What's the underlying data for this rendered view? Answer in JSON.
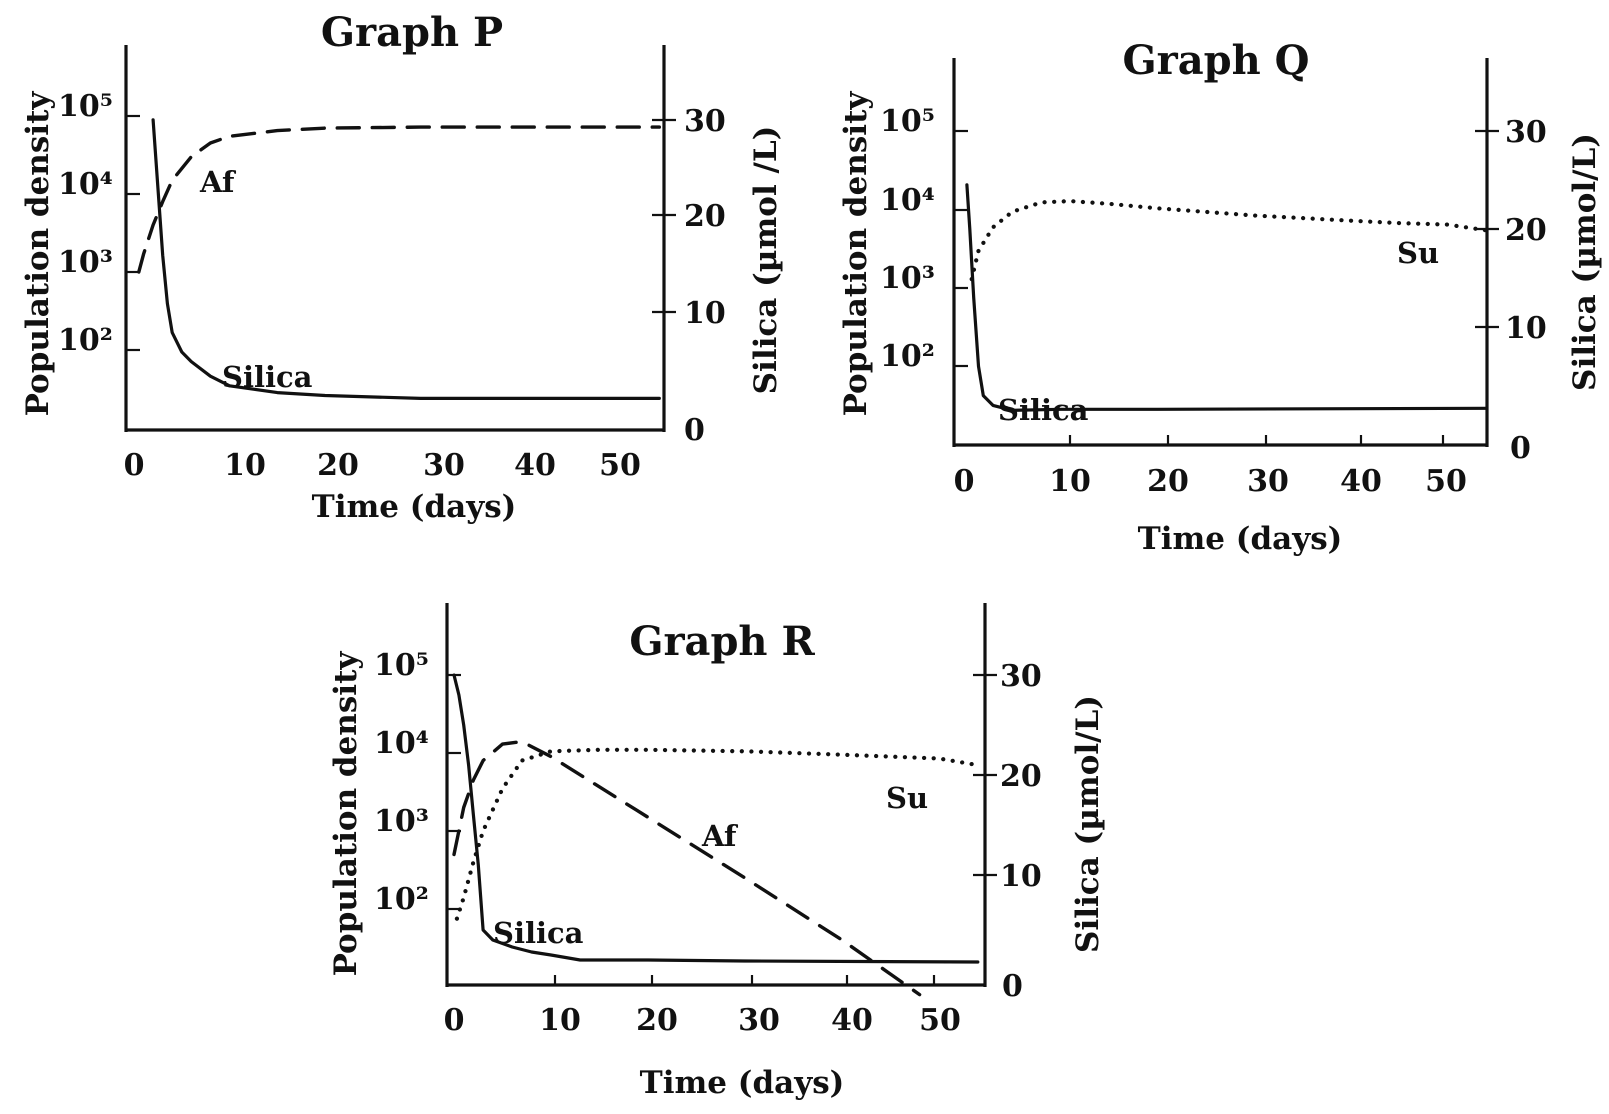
{
  "chart_data": [
    {
      "type": "line",
      "title": "Graph P",
      "xlabel": "Time (days)",
      "ylabel_left": "Population density",
      "ylabel_right": "Silica (µmol /L)",
      "x_ticks": [
        "0",
        "10",
        "20",
        "30",
        "40",
        "50"
      ],
      "y_left_ticks": [
        "10²",
        "10³",
        "10⁴",
        "10⁵"
      ],
      "y_left_scale": "log",
      "y_right_ticks": [
        "0",
        "10",
        "20",
        "30"
      ],
      "y_right_range": [
        0,
        30
      ],
      "xlim": [
        0,
        55
      ],
      "series": [
        {
          "name": "Silica",
          "axis": "right",
          "style": "solid",
          "x": [
            2,
            2.5,
            3,
            3.5,
            4,
            5,
            6,
            8,
            10,
            15,
            20,
            30,
            40,
            55
          ],
          "y": [
            30,
            23,
            16,
            11,
            8,
            6,
            5,
            3.5,
            2.5,
            1.8,
            1.5,
            1.2,
            1.2,
            1.2
          ]
        },
        {
          "name": "Af",
          "axis": "left",
          "style": "dashed",
          "x": [
            0.5,
            1,
            2,
            3,
            4,
            6,
            8,
            10,
            15,
            20,
            30,
            55
          ],
          "y": [
            1000,
            1700,
            4000,
            8000,
            15000,
            30000,
            45000,
            55000,
            65000,
            70000,
            72000,
            72000
          ]
        }
      ],
      "annotations": [
        "Silica",
        "Af"
      ]
    },
    {
      "type": "line",
      "title": "Graph Q",
      "xlabel": "Time (days)",
      "ylabel_left": "Population density",
      "ylabel_right": "Silica (µmol/L)",
      "x_ticks": [
        "0",
        "10",
        "20",
        "30",
        "40",
        "50"
      ],
      "y_left_ticks": [
        "10²",
        "10³",
        "10⁴",
        "10⁵"
      ],
      "y_left_scale": "log",
      "y_right_ticks": [
        "0",
        "10",
        "20",
        "30"
      ],
      "y_right_range": [
        0,
        30
      ],
      "xlim": [
        0,
        55
      ],
      "series": [
        {
          "name": "Silica",
          "axis": "right",
          "style": "solid",
          "x": [
            0.3,
            0.6,
            1,
            1.5,
            2,
            3,
            5,
            10,
            20,
            54
          ],
          "y": [
            24.5,
            20,
            13,
            6,
            3,
            2,
            1.5,
            1.6,
            1.6,
            1.7
          ]
        },
        {
          "name": "Su",
          "axis": "left",
          "style": "dotted",
          "x": [
            0.8,
            1.5,
            3,
            5,
            8,
            11,
            15,
            20,
            30,
            40,
            45,
            50,
            54
          ],
          "y": [
            1300,
            3000,
            6000,
            9500,
            12500,
            13000,
            12000,
            10500,
            8500,
            7300,
            6800,
            6500,
            5500
          ]
        }
      ],
      "annotations": [
        "Silica",
        "Su"
      ]
    },
    {
      "type": "line",
      "title": "Graph R",
      "xlabel": "Time (days)",
      "ylabel_left": "Population density",
      "ylabel_right": "Silica (µmol/L)",
      "x_ticks": [
        "0",
        "10",
        "20",
        "30",
        "40",
        "50"
      ],
      "y_left_ticks": [
        "10²",
        "10³",
        "10⁴",
        "10⁵"
      ],
      "y_left_scale": "log",
      "y_right_ticks": [
        "0",
        "10",
        "20",
        "30"
      ],
      "y_right_range": [
        0,
        30
      ],
      "xlim": [
        0,
        55
      ],
      "series": [
        {
          "name": "Silica",
          "axis": "right",
          "style": "solid",
          "x": [
            0,
            0.5,
            1,
            1.5,
            2,
            2.5,
            3,
            4,
            6,
            8,
            10,
            13,
            20,
            30,
            54
          ],
          "y": [
            30,
            28,
            25,
            21,
            16,
            11,
            4.5,
            3.5,
            2.8,
            2.3,
            2,
            1.5,
            1.5,
            1.4,
            1.3
          ]
        },
        {
          "name": "Af",
          "axis": "left",
          "style": "dashed",
          "x": [
            0,
            1,
            2,
            3,
            5,
            7,
            10,
            20,
            30,
            40,
            48
          ],
          "y": [
            500,
            2000,
            4500,
            8000,
            13000,
            14000,
            9000,
            1500,
            250,
            40,
            8
          ]
        },
        {
          "name": "Su",
          "axis": "left",
          "style": "dotted",
          "x": [
            0.3,
            1,
            2,
            3,
            5,
            7,
            10,
            15,
            20,
            30,
            40,
            50,
            54
          ],
          "y": [
            75,
            140,
            400,
            1000,
            3500,
            8000,
            10500,
            11000,
            11000,
            10500,
            9500,
            8500,
            7000
          ]
        }
      ],
      "annotations": [
        "Silica",
        "Af",
        "Su"
      ]
    }
  ]
}
